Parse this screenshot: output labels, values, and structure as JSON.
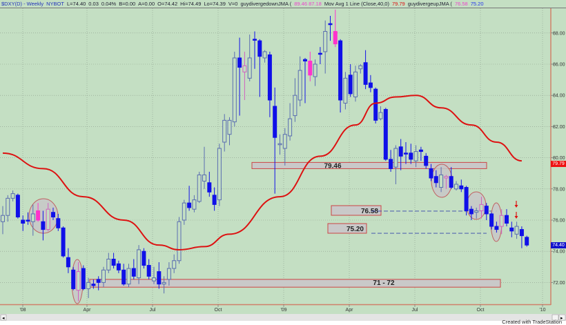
{
  "header": {
    "symbol": "$DXY(D) - Weekly",
    "exchange": "NYBOT",
    "last": "L=74.40",
    "change": "0.03",
    "change_pct": "0.04%",
    "bid": "B=0.00",
    "ask": "A=0.00",
    "open": "O=74.42",
    "high": "Hi=74.49",
    "low": "Lo=74.39",
    "volume": "V=0",
    "ind1_name": "guydivergedownJMA (",
    "ind1_values": "89.46  87.18",
    "ind2_name": "Mov Avg 1 Line (Close,40,0)",
    "ind2_value": "79.79",
    "ind3_name": "guydivergeupJMA (",
    "ind3_value_a": "76.58",
    "ind3_value_b": "75.20"
  },
  "colors": {
    "background": "#c4dfc3",
    "down_candle": "#1010e8",
    "up_candle": "#5a6db0",
    "signal_candle": "#ff33cc",
    "moving_average": "#dd1111",
    "annotation_box": "#c9c9c9",
    "annotation_border": "#cc4444"
  },
  "price_tags": {
    "ma": "79.79",
    "last": "74.40"
  },
  "credit": "Created with TradeStation",
  "chart_data": {
    "type": "candlestick",
    "title": "",
    "x_tick_labels": [
      "'08",
      "Apr",
      "Jul",
      "Oct",
      "'09",
      "Apr",
      "Jul",
      "Oct",
      "'10"
    ],
    "y_tick_labels": [
      "72.00",
      "74.00",
      "76.00",
      "78.00",
      "80.00",
      "82.00",
      "84.00",
      "86.00",
      "88.00"
    ],
    "ylim": [
      70.7,
      89.6
    ],
    "grid": true,
    "candles": [
      [
        75.9,
        76.9,
        75.1,
        76.3,
        "up"
      ],
      [
        76.3,
        77.6,
        75.9,
        77.4,
        "up"
      ],
      [
        77.4,
        77.9,
        77.2,
        77.7,
        "up"
      ],
      [
        77.6,
        77.7,
        76.1,
        76.2,
        "down"
      ],
      [
        76.0,
        76.3,
        75.3,
        75.8,
        "down"
      ],
      [
        76.0,
        76.5,
        75.7,
        76.0,
        "down"
      ],
      [
        75.9,
        77.0,
        75.0,
        76.4,
        "up"
      ],
      [
        76.6,
        77.1,
        75.9,
        76.0,
        "sig"
      ],
      [
        75.9,
        76.6,
        74.7,
        75.4,
        "down"
      ],
      [
        75.4,
        77.1,
        75.3,
        76.7,
        "sigup"
      ],
      [
        76.5,
        76.8,
        76.0,
        76.2,
        "down"
      ],
      [
        76.1,
        76.4,
        75.3,
        75.5,
        "down"
      ],
      [
        75.5,
        75.6,
        73.6,
        73.7,
        "down"
      ],
      [
        73.6,
        74.2,
        72.6,
        73.0,
        "down"
      ],
      [
        72.8,
        73.0,
        71.5,
        71.6,
        "down"
      ],
      [
        71.5,
        73.3,
        70.8,
        72.7,
        "sigup"
      ],
      [
        72.9,
        73.1,
        71.5,
        71.6,
        "down"
      ],
      [
        71.6,
        72.3,
        71.0,
        72.0,
        "up"
      ],
      [
        71.9,
        72.2,
        71.6,
        71.8,
        "down"
      ],
      [
        72.2,
        72.4,
        71.5,
        72.0,
        "down"
      ],
      [
        72.0,
        73.0,
        71.7,
        72.8,
        "up"
      ],
      [
        72.8,
        73.9,
        72.6,
        73.5,
        "up"
      ],
      [
        73.5,
        73.9,
        72.9,
        73.1,
        "down"
      ],
      [
        73.2,
        73.4,
        72.6,
        72.8,
        "down"
      ],
      [
        72.8,
        73.2,
        71.8,
        71.9,
        "down"
      ],
      [
        71.9,
        73.2,
        71.7,
        72.9,
        "up"
      ],
      [
        72.9,
        73.5,
        72.2,
        72.4,
        "down"
      ],
      [
        72.3,
        74.4,
        71.9,
        74.1,
        "up"
      ],
      [
        74.0,
        74.2,
        72.9,
        73.1,
        "down"
      ],
      [
        73.1,
        73.5,
        72.2,
        72.4,
        "down"
      ],
      [
        72.1,
        73.0,
        71.9,
        72.3,
        "up"
      ],
      [
        72.7,
        73.3,
        71.6,
        71.9,
        "down"
      ],
      [
        71.9,
        72.4,
        71.3,
        72.0,
        "up"
      ],
      [
        72.2,
        73.3,
        71.8,
        72.9,
        "up"
      ],
      [
        72.9,
        73.8,
        72.6,
        73.4,
        "up"
      ],
      [
        73.4,
        76.2,
        73.2,
        75.9,
        "up"
      ],
      [
        76.0,
        77.3,
        75.7,
        77.1,
        "up"
      ],
      [
        77.1,
        78.2,
        76.6,
        76.8,
        "down"
      ],
      [
        76.7,
        77.6,
        76.5,
        77.3,
        "up"
      ],
      [
        77.2,
        79.1,
        77.1,
        78.9,
        "up"
      ],
      [
        78.5,
        80.7,
        78.0,
        78.9,
        "up"
      ],
      [
        78.4,
        79.1,
        77.5,
        77.8,
        "down"
      ],
      [
        77.6,
        78.1,
        76.6,
        77.0,
        "down"
      ],
      [
        77.3,
        80.9,
        76.9,
        80.6,
        "up"
      ],
      [
        81.0,
        82.8,
        80.4,
        82.4,
        "up"
      ],
      [
        81.5,
        82.6,
        80.8,
        82.4,
        "up"
      ],
      [
        82.3,
        86.8,
        82.0,
        86.4,
        "up"
      ],
      [
        86.4,
        87.7,
        82.7,
        85.8,
        "down"
      ],
      [
        85.5,
        86.8,
        83.7,
        85.9,
        "sigup"
      ],
      [
        85.1,
        87.9,
        84.9,
        86.4,
        "up"
      ],
      [
        87.6,
        88.1,
        85.7,
        87.6,
        "down"
      ],
      [
        87.5,
        87.6,
        83.9,
        86.5,
        "down"
      ],
      [
        86.4,
        86.9,
        86.1,
        86.8,
        "up"
      ],
      [
        86.6,
        86.8,
        82.6,
        83.7,
        "down"
      ],
      [
        83.3,
        84.5,
        77.7,
        81.3,
        "down"
      ],
      [
        80.9,
        81.5,
        80.2,
        80.9,
        "up"
      ],
      [
        80.6,
        81.9,
        79.5,
        81.5,
        "up"
      ],
      [
        81.4,
        83.5,
        81.1,
        82.5,
        "up"
      ],
      [
        82.7,
        85.1,
        82.3,
        84.0,
        "up"
      ],
      [
        83.7,
        86.5,
        83.3,
        85.6,
        "up"
      ],
      [
        86.3,
        86.4,
        83.5,
        86.2,
        "down"
      ],
      [
        86.2,
        86.8,
        84.9,
        85.3,
        "sig"
      ],
      [
        85.2,
        86.3,
        84.6,
        86.0,
        "up"
      ],
      [
        86.7,
        87.1,
        86.0,
        86.7,
        "down"
      ],
      [
        86.8,
        88.8,
        85.4,
        88.1,
        "up"
      ],
      [
        88.6,
        89.1,
        87.5,
        88.6,
        "down"
      ],
      [
        88.1,
        89.5,
        87.1,
        87.3,
        "sig"
      ],
      [
        87.5,
        87.6,
        82.9,
        83.7,
        "down"
      ],
      [
        83.5,
        85.5,
        83.1,
        85.1,
        "up"
      ],
      [
        85.3,
        86.0,
        83.9,
        84.1,
        "down"
      ],
      [
        83.9,
        85.9,
        83.6,
        85.5,
        "up"
      ],
      [
        85.7,
        86.0,
        85.4,
        85.9,
        "up"
      ],
      [
        86.1,
        86.9,
        84.4,
        84.7,
        "down"
      ],
      [
        84.8,
        85.3,
        84.2,
        84.5,
        "down"
      ],
      [
        84.4,
        84.5,
        82.2,
        82.4,
        "down"
      ],
      [
        82.5,
        83.3,
        82.4,
        82.9,
        "up"
      ],
      [
        83.1,
        83.2,
        79.8,
        79.9,
        "down"
      ],
      [
        79.9,
        80.5,
        79.1,
        79.3,
        "down"
      ],
      [
        79.4,
        80.8,
        78.3,
        80.6,
        "up"
      ],
      [
        80.7,
        81.2,
        79.2,
        80.1,
        "down"
      ],
      [
        80.3,
        81.0,
        79.6,
        80.3,
        "down"
      ],
      [
        80.3,
        80.9,
        79.6,
        79.9,
        "down"
      ],
      [
        79.8,
        80.8,
        79.4,
        80.4,
        "up"
      ],
      [
        80.5,
        80.7,
        79.8,
        80.4,
        "down"
      ],
      [
        80.1,
        80.3,
        79.3,
        79.5,
        "down"
      ],
      [
        79.3,
        79.6,
        78.5,
        78.7,
        "down"
      ],
      [
        78.8,
        79.2,
        78.1,
        78.4,
        "down"
      ],
      [
        78.1,
        79.4,
        77.8,
        78.9,
        "up"
      ],
      [
        78.7,
        78.9,
        78.0,
        78.8,
        "sigup"
      ],
      [
        78.8,
        79.4,
        78.0,
        78.1,
        "down"
      ],
      [
        78.0,
        78.5,
        77.9,
        78.3,
        "up"
      ],
      [
        78.2,
        78.6,
        77.8,
        78.0,
        "down"
      ],
      [
        78.1,
        78.2,
        76.3,
        76.6,
        "down"
      ],
      [
        76.7,
        76.9,
        76.0,
        76.4,
        "down"
      ],
      [
        76.5,
        76.8,
        76.1,
        76.6,
        "up"
      ],
      [
        76.6,
        77.5,
        76.1,
        77.0,
        "sigup"
      ],
      [
        76.9,
        77.1,
        76.0,
        76.4,
        "down"
      ],
      [
        76.4,
        76.5,
        75.4,
        75.6,
        "down"
      ],
      [
        75.6,
        75.9,
        75.2,
        75.4,
        "down"
      ],
      [
        75.6,
        76.7,
        75.1,
        76.3,
        "sigup"
      ],
      [
        76.3,
        76.7,
        75.6,
        75.8,
        "down"
      ],
      [
        75.5,
        75.9,
        74.9,
        75.3,
        "down"
      ],
      [
        75.1,
        75.9,
        74.8,
        75.6,
        "up"
      ],
      [
        75.4,
        75.6,
        74.2,
        75.0,
        "down"
      ],
      [
        74.9,
        75.0,
        74.3,
        74.4,
        "down"
      ]
    ],
    "moving_average": {
      "name": "Mov Avg 1 Line (Close,40,0)",
      "points": [
        [
          0,
          80.3
        ],
        [
          8,
          79.3
        ],
        [
          16,
          77.5
        ],
        [
          24,
          76.0
        ],
        [
          31,
          74.4
        ],
        [
          35,
          74.1
        ],
        [
          40,
          74.3
        ],
        [
          45,
          75.1
        ],
        [
          55,
          77.5
        ],
        [
          63,
          80.1
        ],
        [
          70,
          82.1
        ],
        [
          74,
          83.5
        ],
        [
          78,
          83.9
        ],
        [
          82,
          84.0
        ],
        [
          87,
          83.2
        ],
        [
          93,
          82.1
        ],
        [
          98,
          81.0
        ],
        [
          103,
          79.8
        ]
      ]
    },
    "annotations": {
      "support_boxes": [
        {
          "label": "79.46",
          "price_low": 79.3,
          "price_high": 79.7
        },
        {
          "label": "71 - 72",
          "price_low": 71.7,
          "price_high": 72.2
        }
      ],
      "level_labels": [
        {
          "label": "76.58",
          "price": 76.58
        },
        {
          "label": "75.20",
          "price": 75.2
        }
      ],
      "divergence_ellipses": 5,
      "down_arrows": 2
    }
  }
}
